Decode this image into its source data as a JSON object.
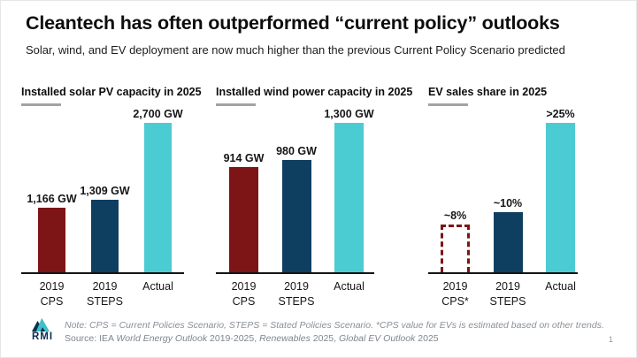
{
  "page": {
    "title": "Cleantech has often outperformed “current policy” outlooks",
    "subtitle": "Solar, wind, and EV deployment are now much higher than the previous Current Policy Scenario predicted",
    "page_number": "1"
  },
  "colors": {
    "cps_red": "#7D1416",
    "steps_navy": "#0F3F60",
    "actual_teal": "#4BCBD2",
    "title_rule_gray": "#A3A3A3"
  },
  "chart_data": [
    {
      "type": "bar",
      "title": "Installed solar PV capacity in 2025",
      "categories": [
        "2019 CPS",
        "2019 STEPS",
        "Actual"
      ],
      "cat_lines": [
        [
          "2019",
          "CPS"
        ],
        [
          "2019",
          "STEPS"
        ],
        [
          "Actual"
        ]
      ],
      "values": [
        1166,
        1309,
        2700
      ],
      "value_labels": [
        "1,166 GW",
        "1,309 GW",
        "2,700 GW"
      ],
      "unit": "GW",
      "ylim": [
        0,
        2700
      ],
      "bar_styles": [
        "solid-cps",
        "solid-steps",
        "solid-actual"
      ],
      "grid": false,
      "legend": "none"
    },
    {
      "type": "bar",
      "title": "Installed wind power capacity in 2025",
      "categories": [
        "2019 CPS",
        "2019 STEPS",
        "Actual"
      ],
      "cat_lines": [
        [
          "2019",
          "CPS"
        ],
        [
          "2019",
          "STEPS"
        ],
        [
          "Actual"
        ]
      ],
      "values": [
        914,
        980,
        1300
      ],
      "value_labels": [
        "914 GW",
        "980 GW",
        "1,300 GW"
      ],
      "unit": "GW",
      "ylim": [
        0,
        1300
      ],
      "bar_styles": [
        "solid-cps",
        "solid-steps",
        "solid-actual"
      ],
      "grid": false,
      "legend": "none"
    },
    {
      "type": "bar",
      "title": "EV sales share in 2025",
      "categories": [
        "2019 CPS*",
        "2019 STEPS",
        "Actual"
      ],
      "cat_lines": [
        [
          "2019",
          "CPS*"
        ],
        [
          "2019",
          "STEPS"
        ],
        [
          "Actual"
        ]
      ],
      "values": [
        8,
        10,
        25
      ],
      "value_labels": [
        "~8%",
        "~10%",
        ">25%"
      ],
      "unit": "%",
      "ylim": [
        0,
        25
      ],
      "bar_styles": [
        "dashed-cps-estimated",
        "solid-steps",
        "solid-actual"
      ],
      "grid": false,
      "legend": "none"
    }
  ],
  "footer": {
    "logo_text": "RMI",
    "note": "Note: CPS = Current Policies Scenario, STEPS = Stated Policies Scenario. *CPS value for EVs is estimated based on other trends.",
    "source_segments": [
      {
        "text": "Source: IEA ",
        "italic": false
      },
      {
        "text": "World Energy Outlook",
        "italic": true
      },
      {
        "text": " 2019-2025, ",
        "italic": false
      },
      {
        "text": "Renewables",
        "italic": true
      },
      {
        "text": " 2025, ",
        "italic": false
      },
      {
        "text": "Global EV Outlook",
        "italic": true
      },
      {
        "text": " 2025",
        "italic": false
      }
    ]
  }
}
